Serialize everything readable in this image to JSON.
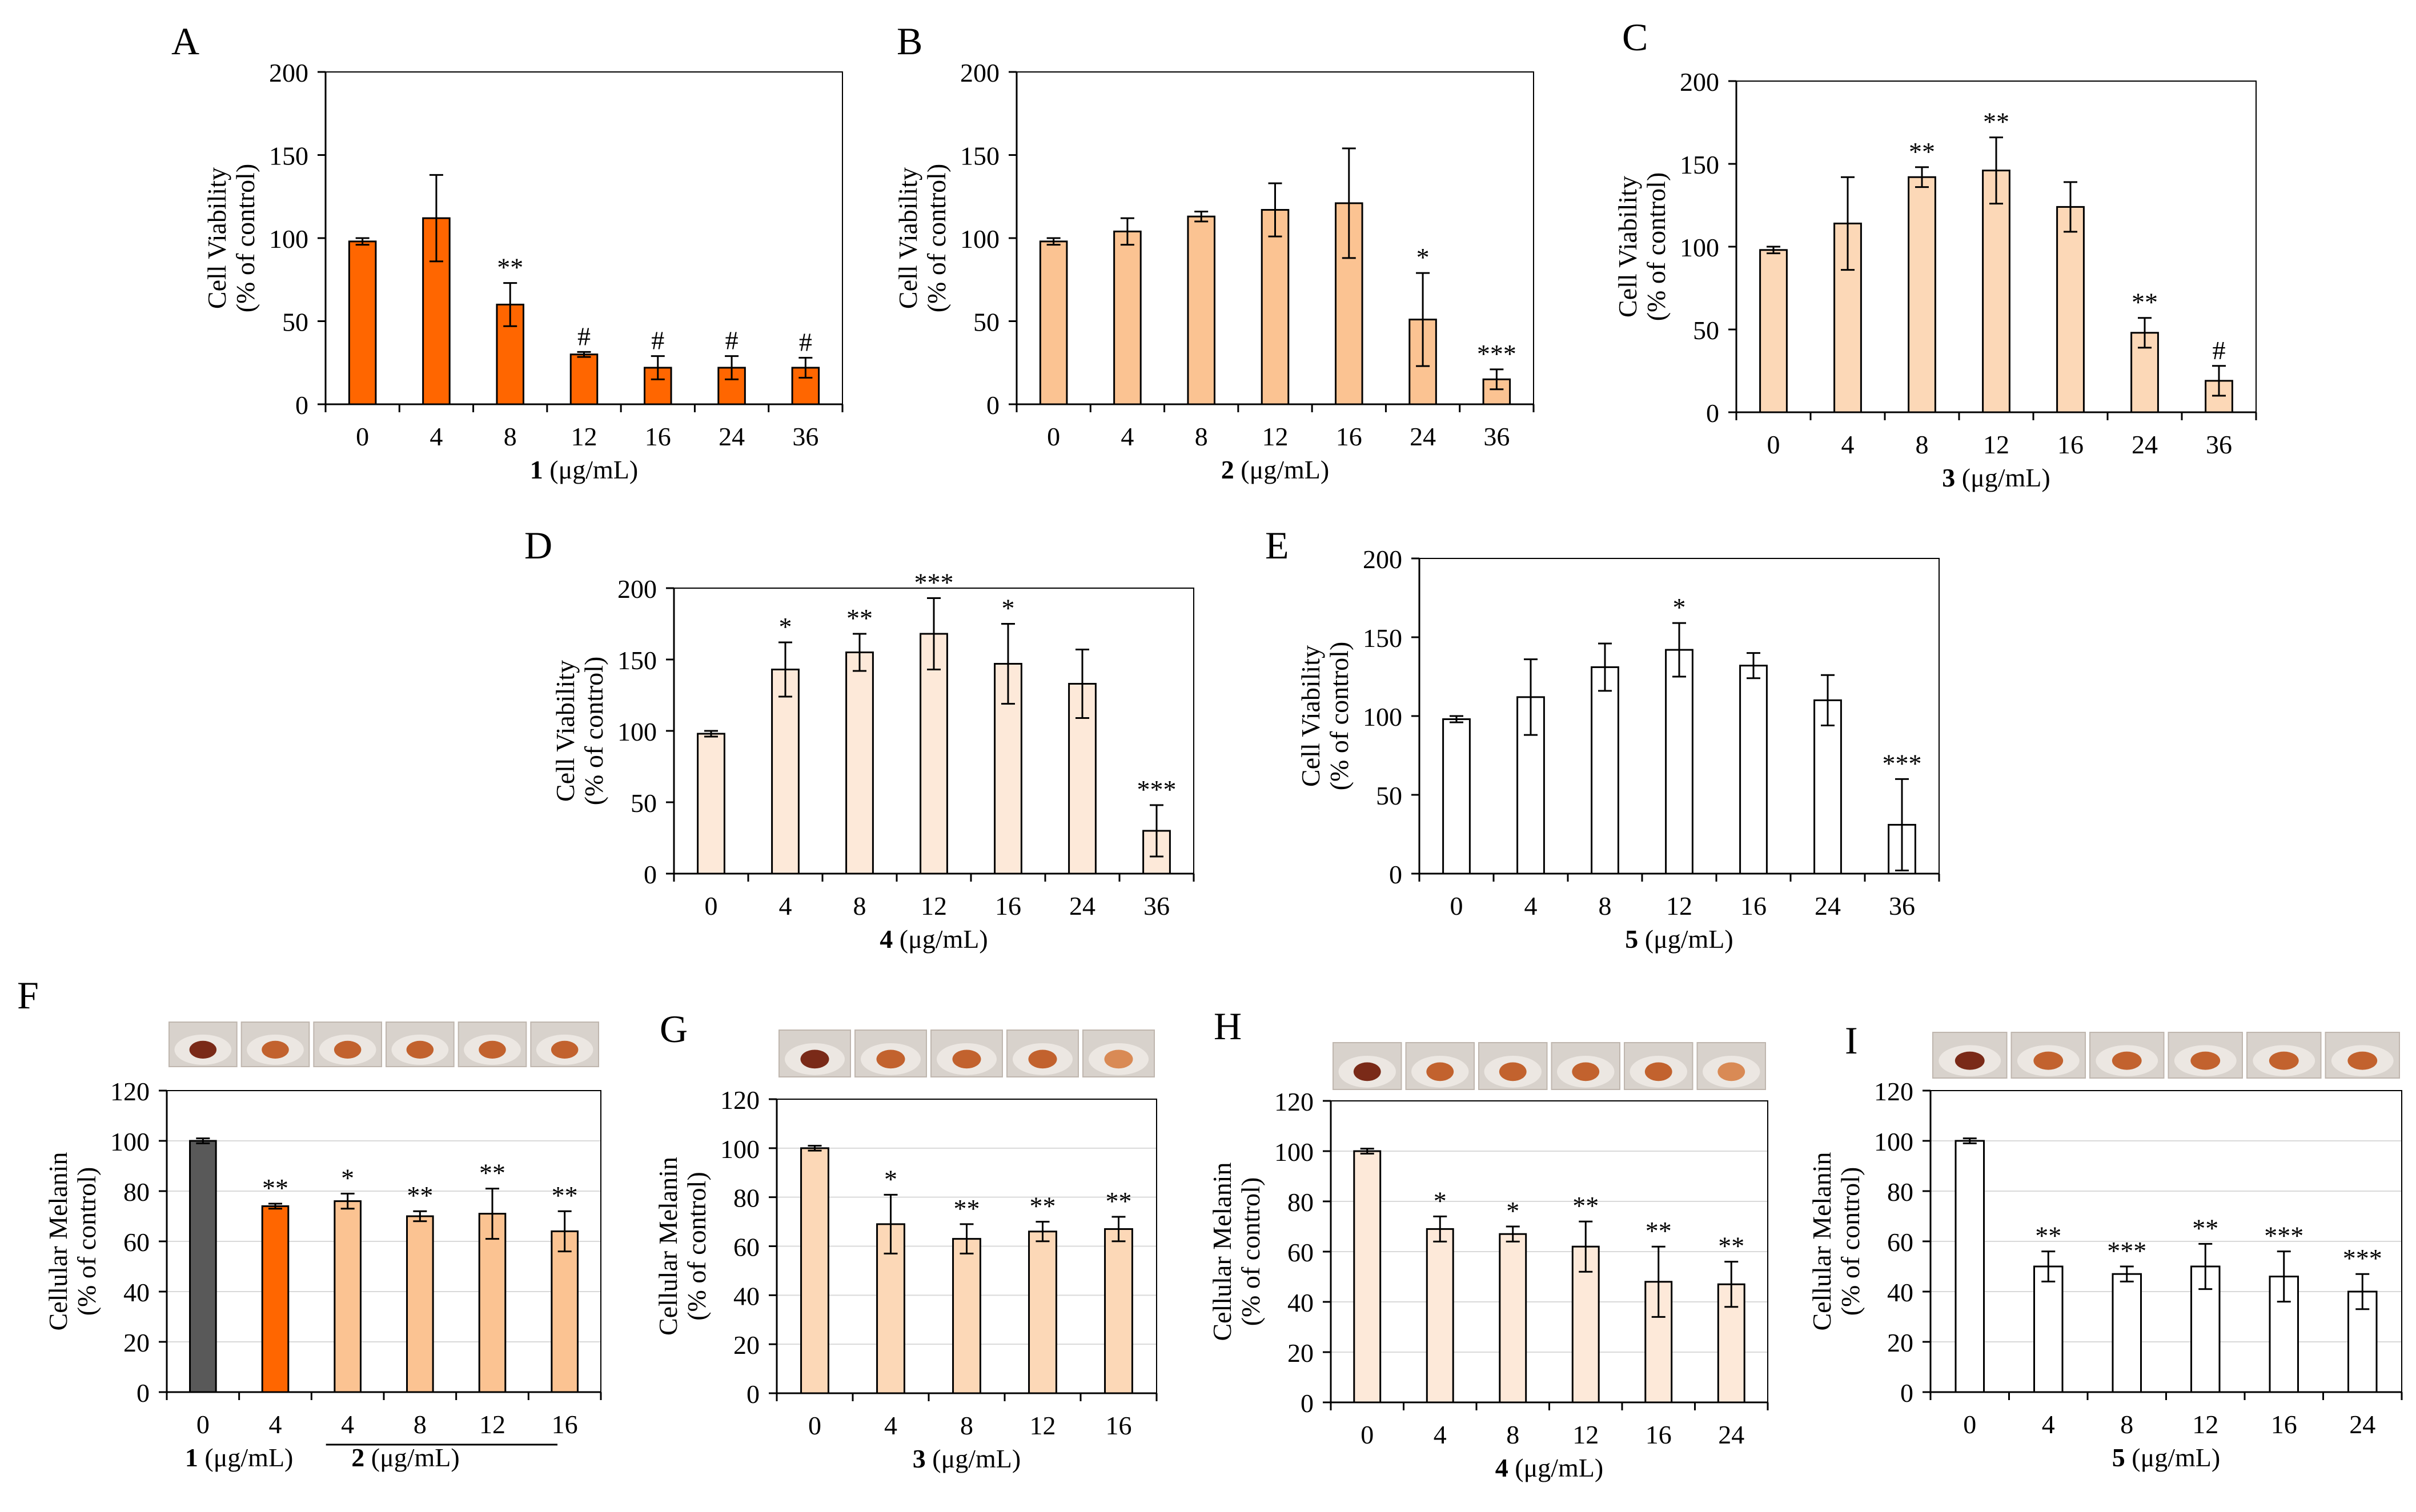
{
  "colors": {
    "dark_orange": "#FF6600",
    "peach": "#FBC392",
    "light_peach": "#FCD8B7",
    "very_light_peach": "#FDE9D9",
    "white": "#FFFFFF",
    "dark_gray": "#595959",
    "axis": "#000000",
    "grid": "#D9D9D9",
    "well_bg": "#D8D2CC",
    "pellet_dark": "#7A2A18",
    "pellet": "#C2622E",
    "pellet_light": "#D98A55"
  },
  "shared": {
    "viability_ylabel": [
      "Cell Viability",
      "(% of control)"
    ],
    "melanin_ylabel": [
      "Cellular Melanin",
      "(% of control)"
    ],
    "unit": "(μg/mL)"
  },
  "chart_data": [
    {
      "id": "A",
      "panel_label": "A",
      "type": "bar",
      "kind": "viability",
      "compound": "1",
      "xlabel": "1 (μg/mL)",
      "ylabel": "Cell Viability (% of control)",
      "ylim": [
        0,
        200
      ],
      "yticks": [
        "0",
        "50",
        "100",
        "150",
        "200"
      ],
      "grid": false,
      "categories": [
        "0",
        "4",
        "8",
        "12",
        "16",
        "24",
        "36"
      ],
      "values": [
        98,
        112,
        60,
        30,
        22,
        22,
        22
      ],
      "errors": [
        2,
        26,
        13,
        1.5,
        7,
        7,
        6
      ],
      "annotations": [
        "",
        "",
        "**",
        "#",
        "#",
        "#",
        "#"
      ],
      "bar_colors": [
        "#FF6600",
        "#FF6600",
        "#FF6600",
        "#FF6600",
        "#FF6600",
        "#FF6600",
        "#FF6600"
      ]
    },
    {
      "id": "B",
      "panel_label": "B",
      "type": "bar",
      "kind": "viability",
      "compound": "2",
      "xlabel": "2 (μg/mL)",
      "ylabel": "Cell Viability (% of control)",
      "ylim": [
        0,
        200
      ],
      "yticks": [
        "0",
        "50",
        "100",
        "150",
        "200"
      ],
      "grid": false,
      "categories": [
        "0",
        "4",
        "8",
        "12",
        "16",
        "24",
        "36"
      ],
      "values": [
        98,
        104,
        113,
        117,
        121,
        51,
        15
      ],
      "errors": [
        2,
        8,
        3,
        16,
        33,
        28,
        6
      ],
      "annotations": [
        "",
        "",
        "",
        "",
        "",
        "*",
        "***"
      ],
      "bar_colors": [
        "#FBC392",
        "#FBC392",
        "#FBC392",
        "#FBC392",
        "#FBC392",
        "#FBC392",
        "#FBC392"
      ]
    },
    {
      "id": "C",
      "panel_label": "C",
      "type": "bar",
      "kind": "viability",
      "compound": "3",
      "xlabel": "3 (μg/mL)",
      "ylabel": "Cell Viability (% of control)",
      "ylim": [
        0,
        200
      ],
      "yticks": [
        "0",
        "50",
        "100",
        "150",
        "200"
      ],
      "grid": false,
      "categories": [
        "0",
        "4",
        "8",
        "12",
        "16",
        "24",
        "36"
      ],
      "values": [
        98,
        114,
        142,
        146,
        124,
        48,
        19
      ],
      "errors": [
        2,
        28,
        6,
        20,
        15,
        9,
        9
      ],
      "annotations": [
        "",
        "",
        "**",
        "**",
        "",
        "**",
        "#"
      ],
      "bar_colors": [
        "#FCD8B7",
        "#FCD8B7",
        "#FCD8B7",
        "#FCD8B7",
        "#FCD8B7",
        "#FCD8B7",
        "#FCD8B7"
      ]
    },
    {
      "id": "D",
      "panel_label": "D",
      "type": "bar",
      "kind": "viability",
      "compound": "4",
      "xlabel": "4 (μg/mL)",
      "ylabel": "Cell Viability (% of control)",
      "ylim": [
        0,
        200
      ],
      "yticks": [
        "0",
        "50",
        "100",
        "150",
        "200"
      ],
      "grid": false,
      "categories": [
        "0",
        "4",
        "8",
        "12",
        "16",
        "24",
        "36"
      ],
      "values": [
        98,
        143,
        155,
        168,
        147,
        133,
        30
      ],
      "errors": [
        2,
        19,
        13,
        25,
        28,
        24,
        18
      ],
      "annotations": [
        "",
        "*",
        "**",
        "***",
        "*",
        "",
        "***"
      ],
      "bar_colors": [
        "#FDE9D9",
        "#FDE9D9",
        "#FDE9D9",
        "#FDE9D9",
        "#FDE9D9",
        "#FDE9D9",
        "#FDE9D9"
      ]
    },
    {
      "id": "E",
      "panel_label": "E",
      "type": "bar",
      "kind": "viability",
      "compound": "5",
      "xlabel": "5 (μg/mL)",
      "ylabel": "Cell Viability (% of control)",
      "ylim": [
        0,
        200
      ],
      "yticks": [
        "0",
        "50",
        "100",
        "150",
        "200"
      ],
      "grid": false,
      "categories": [
        "0",
        "4",
        "8",
        "12",
        "16",
        "24",
        "36"
      ],
      "values": [
        98,
        112,
        131,
        142,
        132,
        110,
        31
      ],
      "errors": [
        2,
        24,
        15,
        17,
        8,
        16,
        29
      ],
      "annotations": [
        "",
        "",
        "",
        "*",
        "",
        "",
        "***"
      ],
      "bar_colors": [
        "#FFFFFF",
        "#FFFFFF",
        "#FFFFFF",
        "#FFFFFF",
        "#FFFFFF",
        "#FFFFFF",
        "#FFFFFF"
      ]
    },
    {
      "id": "F",
      "panel_label": "F",
      "type": "bar",
      "kind": "melanin",
      "compound": "1 and 2",
      "xlabel_parts": [
        [
          "1",
          " (μg/mL)"
        ],
        [
          "2",
          " (μg/mL)"
        ]
      ],
      "ylabel": "Cellular Melanin (% of control)",
      "ylim": [
        0,
        120
      ],
      "yticks": [
        "0",
        "20",
        "40",
        "60",
        "80",
        "100",
        "120"
      ],
      "grid": true,
      "categories": [
        "0",
        "4",
        "4",
        "8",
        "12",
        "16"
      ],
      "values": [
        100,
        74,
        76,
        70,
        71,
        64
      ],
      "errors": [
        1,
        1,
        3,
        2,
        10,
        8
      ],
      "annotations": [
        "",
        "**",
        "*",
        "**",
        "**",
        "**"
      ],
      "bar_colors": [
        "#595959",
        "#FF6600",
        "#FBC392",
        "#FBC392",
        "#FBC392",
        "#FBC392"
      ],
      "pellets": [
        "dark",
        "pellet",
        "pellet",
        "pellet",
        "pellet",
        "pellet"
      ]
    },
    {
      "id": "G",
      "panel_label": "G",
      "type": "bar",
      "kind": "melanin",
      "compound": "3",
      "xlabel": "3 (μg/mL)",
      "ylabel": "Cellular Melanin (% of control)",
      "ylim": [
        0,
        120
      ],
      "yticks": [
        "0",
        "20",
        "40",
        "60",
        "80",
        "100",
        "120"
      ],
      "grid": true,
      "categories": [
        "0",
        "4",
        "8",
        "12",
        "16"
      ],
      "values": [
        100,
        69,
        63,
        66,
        67
      ],
      "errors": [
        1,
        12,
        6,
        4,
        5
      ],
      "annotations": [
        "",
        "*",
        "**",
        "**",
        "**"
      ],
      "bar_colors": [
        "#FCD8B7",
        "#FCD8B7",
        "#FCD8B7",
        "#FCD8B7",
        "#FCD8B7"
      ],
      "pellets": [
        "dark",
        "pellet",
        "pellet",
        "pellet",
        "light"
      ]
    },
    {
      "id": "H",
      "panel_label": "H",
      "type": "bar",
      "kind": "melanin",
      "compound": "4",
      "xlabel": "4 (μg/mL)",
      "ylabel": "Cellular Melanin (% of control)",
      "ylim": [
        0,
        120
      ],
      "yticks": [
        "0",
        "20",
        "40",
        "60",
        "80",
        "100",
        "120"
      ],
      "grid": true,
      "categories": [
        "0",
        "4",
        "8",
        "12",
        "16",
        "24"
      ],
      "values": [
        100,
        69,
        67,
        62,
        48,
        47
      ],
      "errors": [
        1,
        5,
        3,
        10,
        14,
        9
      ],
      "annotations": [
        "",
        "*",
        "*",
        "**",
        "**",
        "**"
      ],
      "bar_colors": [
        "#FDE9D9",
        "#FDE9D9",
        "#FDE9D9",
        "#FDE9D9",
        "#FDE9D9",
        "#FDE9D9"
      ],
      "pellets": [
        "dark",
        "pellet",
        "pellet",
        "pellet",
        "pellet",
        "light"
      ]
    },
    {
      "id": "I",
      "panel_label": "I",
      "type": "bar",
      "kind": "melanin",
      "compound": "5",
      "xlabel": "5 (μg/mL)",
      "ylabel": "Cellular Melanin (% of control)",
      "ylim": [
        0,
        120
      ],
      "yticks": [
        "0",
        "20",
        "40",
        "60",
        "80",
        "100",
        "120"
      ],
      "grid": true,
      "categories": [
        "0",
        "4",
        "8",
        "12",
        "16",
        "24"
      ],
      "values": [
        100,
        50,
        47,
        50,
        46,
        40
      ],
      "errors": [
        1,
        6,
        3,
        9,
        10,
        7
      ],
      "annotations": [
        "",
        "**",
        "***",
        "**",
        "***",
        "***"
      ],
      "bar_colors": [
        "#FFFFFF",
        "#FFFFFF",
        "#FFFFFF",
        "#FFFFFF",
        "#FFFFFF",
        "#FFFFFF"
      ],
      "pellets": [
        "dark",
        "pellet",
        "pellet",
        "pellet",
        "pellet",
        "pellet"
      ]
    }
  ]
}
